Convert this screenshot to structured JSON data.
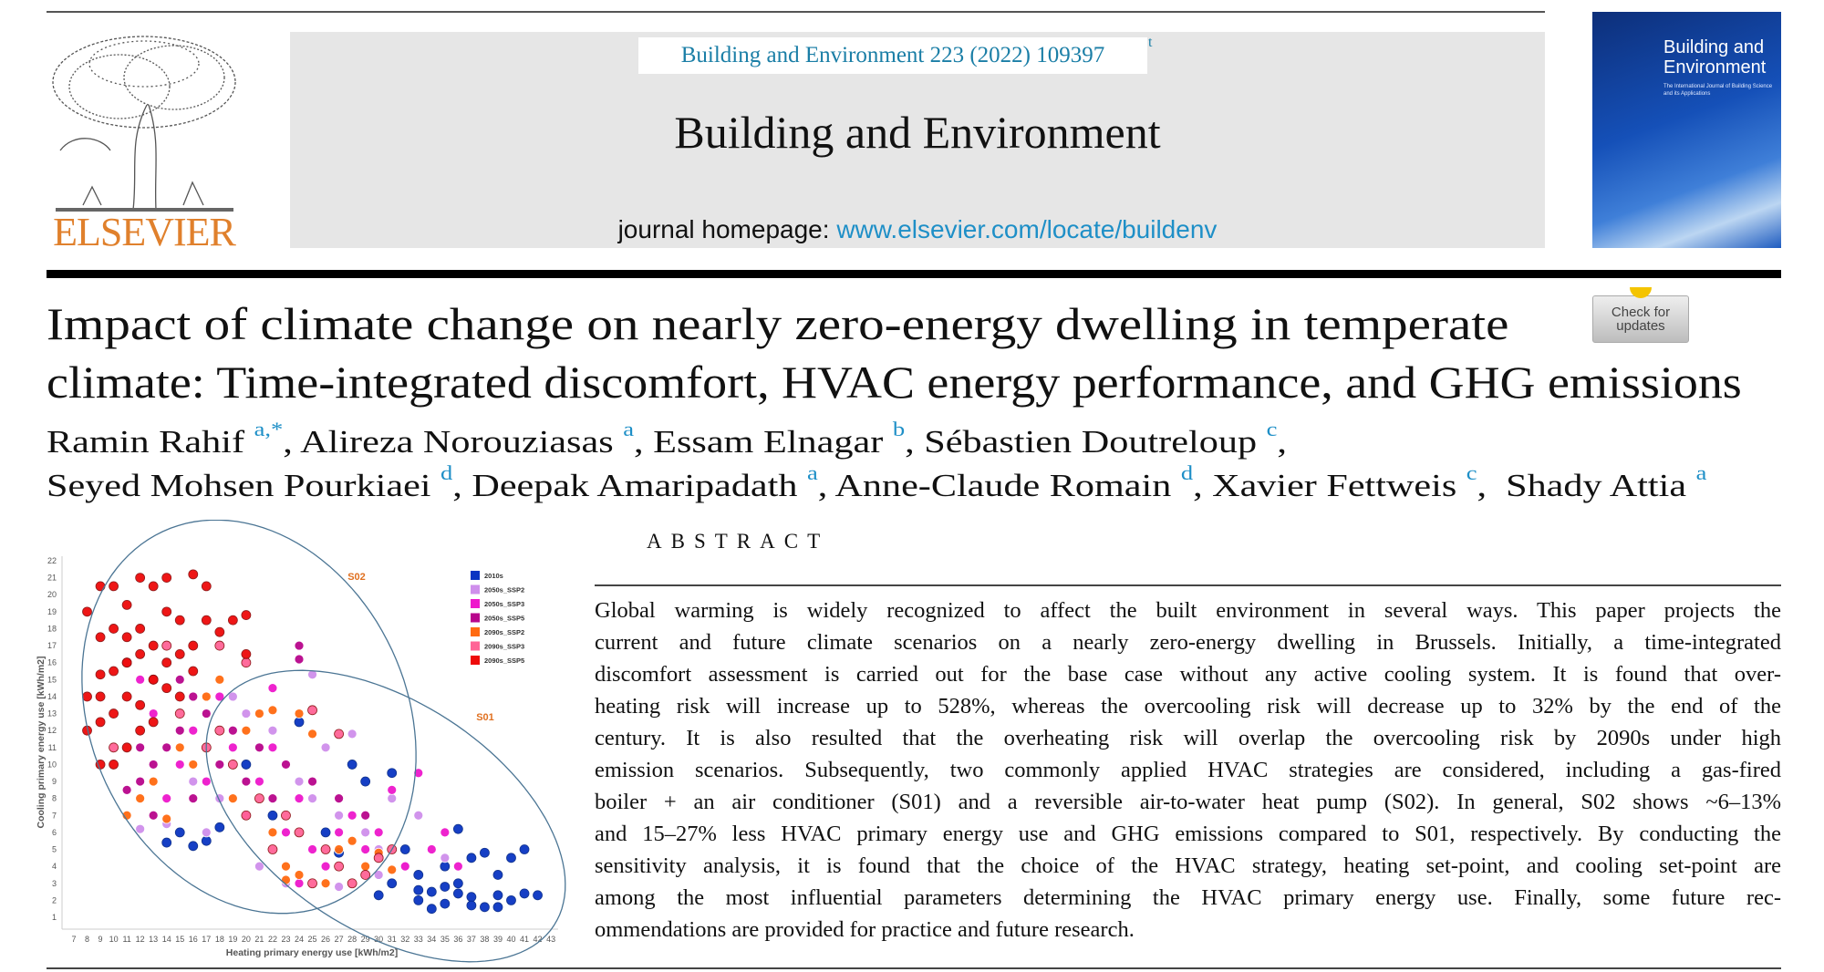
{
  "header": {
    "citation": "Building and Environment 223 (2022) 109397",
    "citation_mark": "t",
    "journal_title": "Building and Environment",
    "homepage_label": "journal homepage: ",
    "homepage_url": "www.elsevier.com/locate/buildenv",
    "publisher_logo": "ELSEVIER",
    "cover_title": "Building and Environment",
    "cover_subtitle": "The International Journal of Building Science and its Applications",
    "check_updates": "Check for updates",
    "colors": {
      "banner": "#e6e6e6",
      "link": "#1e8fc7",
      "citation": "#1a7ea6",
      "publisher": "#e0802c"
    }
  },
  "article": {
    "title_lines": [
      "Impact of climate change on nearly zero-energy dwelling in temperate",
      "climate: Time-integrated discomfort, HVAC energy performance, and GHG emissions"
    ],
    "authors": [
      [
        {
          "name": "Ramin Rahif",
          "aff": "a,*",
          "sep": ", "
        },
        {
          "name": "Alireza Norouziasas",
          "aff": "a",
          "sep": ", "
        },
        {
          "name": "Essam Elnagar",
          "aff": "b",
          "sep": ", "
        },
        {
          "name": "Sébastien Doutreloup",
          "aff": "c",
          "sep": ","
        }
      ],
      [
        {
          "name": "Seyed Mohsen Pourkiaei",
          "aff": "d",
          "sep": ", "
        },
        {
          "name": "Deepak Amaripadath",
          "aff": "a",
          "sep": ", "
        },
        {
          "name": "Anne-Claude Romain",
          "aff": "d",
          "sep": ", "
        },
        {
          "name": "Xavier Fettweis",
          "aff": "c",
          "sep": ",  "
        },
        {
          "name": "Shady Attia",
          "aff": "a",
          "sep": ""
        }
      ]
    ],
    "abstract_heading": "ABSTRACT",
    "abstract_lines": [
      "Global warming is widely recognized to affect the built environment in several ways. This paper projects the",
      "current and future climate scenarios on a nearly zero-energy dwelling in Brussels. Initially, a time-integrated",
      "discomfort assessment is carried out for the base case without any active cooling system. It is found that over-",
      "heating risk will increase up to 528%, whereas the overcooling risk will decrease up to 32% by the end of the",
      "century. It is also resulted that the overheating risk will overlap the overcooling risk by 2090s under high",
      "emission scenarios. Subsequently, two commonly applied HVAC strategies are considered, including a gas-fired",
      "boiler + an air conditioner (S01) and a reversible air-to-water heat pump (S02). In general, S02 shows ~6–13%",
      "and 15–27% less HVAC primary energy use and GHG emissions compared to S01, respectively. By conducting the",
      "sensitivity analysis, it is found that the choice of the HVAC strategy, heating set-point, and cooling set-point are",
      "among the most influential parameters determining the HVAC primary energy use. Finally, some future rec-",
      "ommendations are provided for practice and future research."
    ]
  },
  "chart_data": {
    "type": "scatter",
    "xlabel": "Heating primary energy use [kWh/m2]",
    "ylabel": "Cooling primary energy use [kWh/m2]",
    "xlim": [
      6,
      43.5
    ],
    "ylim": [
      0.3,
      22
    ],
    "xticks": [
      7,
      8,
      9,
      10,
      11,
      12,
      13,
      14,
      15,
      16,
      17,
      18,
      19,
      20,
      21,
      22,
      23,
      24,
      25,
      26,
      27,
      28,
      29,
      30,
      31,
      32,
      33,
      34,
      35,
      36,
      37,
      38,
      39,
      40,
      41,
      42,
      43
    ],
    "yticks": [
      1,
      2,
      3,
      4,
      5,
      6,
      7,
      8,
      9,
      10,
      11,
      12,
      13,
      14,
      15,
      16,
      17,
      18,
      19,
      20,
      21,
      22
    ],
    "grid": false,
    "legend_position": "top-right",
    "annotations": [
      {
        "label": "S02",
        "color": "#e07020",
        "shape": "ellipse"
      },
      {
        "label": "S01",
        "color": "#e07020",
        "shape": "ellipse"
      }
    ],
    "series": [
      {
        "name": "2010s",
        "color": "#0a35c2",
        "points": [
          [
            33,
            2
          ],
          [
            34,
            2.5
          ],
          [
            35,
            1.8
          ],
          [
            36,
            3
          ],
          [
            37,
            2.2
          ],
          [
            38,
            1.6
          ],
          [
            39,
            2.3
          ],
          [
            40,
            2
          ],
          [
            41,
            2.4
          ],
          [
            42,
            2.3
          ],
          [
            35,
            4
          ],
          [
            37,
            4.5
          ],
          [
            39,
            3.5
          ],
          [
            41,
            5
          ],
          [
            36,
            6.2
          ],
          [
            32,
            5
          ],
          [
            30,
            2.3
          ],
          [
            31,
            3
          ],
          [
            29,
            9
          ],
          [
            28,
            10
          ],
          [
            24,
            12.5
          ],
          [
            17,
            5.5
          ],
          [
            16,
            5.2
          ],
          [
            15,
            6
          ],
          [
            14,
            5.4
          ],
          [
            22,
            7
          ],
          [
            26,
            6
          ],
          [
            20,
            10
          ],
          [
            33,
            3.5
          ],
          [
            38,
            4.8
          ],
          [
            40,
            4.5
          ],
          [
            34,
            1.5
          ],
          [
            36,
            2.4
          ],
          [
            37,
            1.7
          ],
          [
            35,
            2.8
          ],
          [
            33,
            2.6
          ],
          [
            39,
            1.6
          ],
          [
            31,
            9.5
          ],
          [
            27,
            4.8
          ],
          [
            18,
            6.3
          ]
        ]
      },
      {
        "name": "2050s_SSP2",
        "color": "#cf8fec",
        "points": [
          [
            12,
            6.2
          ],
          [
            14,
            6.5
          ],
          [
            17,
            6
          ],
          [
            20,
            13
          ],
          [
            22,
            12
          ],
          [
            25,
            8
          ],
          [
            27,
            7
          ],
          [
            29,
            6
          ],
          [
            30,
            5
          ],
          [
            31,
            8
          ],
          [
            33,
            7
          ],
          [
            26,
            11
          ],
          [
            28,
            11.8
          ],
          [
            24,
            9
          ],
          [
            21,
            4
          ],
          [
            23,
            3
          ],
          [
            30,
            3.5
          ],
          [
            32,
            4
          ],
          [
            27,
            2.8
          ],
          [
            18,
            8
          ],
          [
            16,
            9
          ],
          [
            25,
            15.3
          ],
          [
            35,
            4.5
          ],
          [
            19,
            14
          ]
        ]
      },
      {
        "name": "2050s_SSP3",
        "color": "#ee18cc",
        "points": [
          [
            14,
            8
          ],
          [
            15,
            10
          ],
          [
            16,
            12
          ],
          [
            17,
            9
          ],
          [
            18,
            14
          ],
          [
            19,
            11
          ],
          [
            20,
            7
          ],
          [
            21,
            9
          ],
          [
            22,
            14.5
          ],
          [
            23,
            6
          ],
          [
            24,
            8
          ],
          [
            25,
            5
          ],
          [
            26,
            4
          ],
          [
            27,
            6
          ],
          [
            28,
            7
          ],
          [
            29,
            5
          ],
          [
            30,
            6
          ],
          [
            31,
            8.5
          ],
          [
            32,
            4
          ],
          [
            33,
            9.5
          ],
          [
            34,
            5
          ],
          [
            35,
            6
          ],
          [
            24,
            3
          ],
          [
            13,
            13
          ],
          [
            12,
            15
          ],
          [
            36,
            4
          ],
          [
            22,
            11
          ]
        ]
      },
      {
        "name": "2050s_SSP5",
        "color": "#b8068c",
        "points": [
          [
            11,
            8.5
          ],
          [
            12,
            9
          ],
          [
            13,
            10
          ],
          [
            14,
            11
          ],
          [
            15,
            12
          ],
          [
            16,
            8
          ],
          [
            17,
            13
          ],
          [
            18,
            10
          ],
          [
            19,
            12
          ],
          [
            20,
            9
          ],
          [
            21,
            11
          ],
          [
            22,
            8
          ],
          [
            23,
            10
          ],
          [
            24,
            17
          ],
          [
            24,
            16.2
          ],
          [
            13,
            7
          ],
          [
            15,
            15
          ],
          [
            16,
            14
          ],
          [
            12,
            11
          ],
          [
            25,
            9
          ],
          [
            27,
            8
          ],
          [
            29,
            7
          ]
        ]
      },
      {
        "name": "2090s_SSP2",
        "color": "#ff6a10",
        "points": [
          [
            11,
            7
          ],
          [
            12,
            8
          ],
          [
            13,
            9
          ],
          [
            14,
            6.8
          ],
          [
            15,
            11
          ],
          [
            16,
            10
          ],
          [
            17,
            14
          ],
          [
            18,
            15
          ],
          [
            19,
            8
          ],
          [
            20,
            12
          ],
          [
            21,
            13
          ],
          [
            22,
            13.2
          ],
          [
            23,
            4
          ],
          [
            24,
            3.5
          ],
          [
            25,
            11.8
          ],
          [
            26,
            3
          ],
          [
            27,
            5
          ],
          [
            29,
            4
          ],
          [
            30,
            4.8
          ],
          [
            31,
            3.8
          ],
          [
            22,
            6
          ],
          [
            28,
            5.5
          ],
          [
            24,
            13
          ],
          [
            23,
            3.2
          ]
        ]
      },
      {
        "name": "2090s_SSP3",
        "color": "#ff6496",
        "points": [
          [
            10,
            11
          ],
          [
            11,
            16
          ],
          [
            13,
            15
          ],
          [
            15,
            13
          ],
          [
            17,
            11
          ],
          [
            18,
            12
          ],
          [
            19,
            10
          ],
          [
            20,
            7
          ],
          [
            21,
            8
          ],
          [
            22,
            5
          ],
          [
            23,
            7
          ],
          [
            24,
            6
          ],
          [
            25,
            13.2
          ],
          [
            26,
            5
          ],
          [
            27,
            4
          ],
          [
            28,
            3
          ],
          [
            29,
            3.5
          ],
          [
            30,
            4.5
          ],
          [
            31,
            5
          ],
          [
            18,
            17
          ],
          [
            14,
            17
          ],
          [
            20,
            16
          ],
          [
            25,
            3
          ],
          [
            27,
            11.8
          ]
        ]
      },
      {
        "name": "2090s_SSP5",
        "color": "#ee0a0a",
        "points": [
          [
            8,
            12
          ],
          [
            8,
            14
          ],
          [
            8,
            19
          ],
          [
            9,
            20.5
          ],
          [
            9,
            17.5
          ],
          [
            9,
            10
          ],
          [
            9,
            15.3
          ],
          [
            10,
            18
          ],
          [
            10,
            20.5
          ],
          [
            10,
            13
          ],
          [
            11,
            19.4
          ],
          [
            11,
            16
          ],
          [
            11,
            14
          ],
          [
            12,
            21
          ],
          [
            12,
            18
          ],
          [
            12,
            12
          ],
          [
            13,
            20.5
          ],
          [
            13,
            17
          ],
          [
            13,
            15
          ],
          [
            14,
            21
          ],
          [
            14,
            19
          ],
          [
            14,
            16
          ],
          [
            15,
            18.5
          ],
          [
            15,
            14
          ],
          [
            16,
            21.2
          ],
          [
            16,
            17
          ],
          [
            17,
            18.5
          ],
          [
            17,
            20.5
          ],
          [
            18,
            17.8
          ],
          [
            20,
            18.8
          ],
          [
            20,
            16.5
          ],
          [
            19,
            18.5
          ],
          [
            12,
            13.5
          ],
          [
            10,
            10
          ],
          [
            11,
            11
          ],
          [
            9,
            12.5
          ],
          [
            10,
            15.5
          ],
          [
            11,
            17.5
          ],
          [
            12,
            16.5
          ],
          [
            13,
            12.5
          ],
          [
            14,
            14.5
          ],
          [
            15,
            16.5
          ],
          [
            16,
            15.5
          ],
          [
            9,
            14
          ]
        ]
      }
    ]
  }
}
